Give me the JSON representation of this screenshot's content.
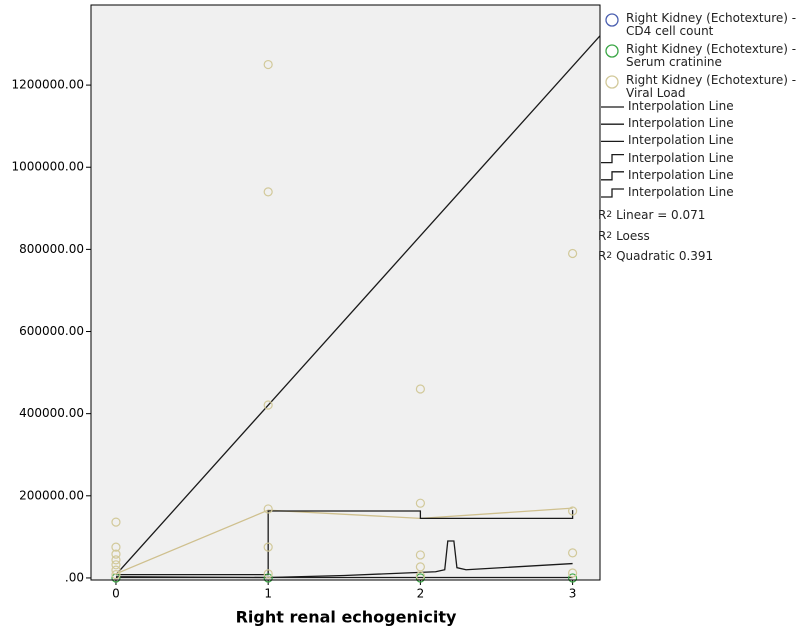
{
  "chart_data": {
    "type": "scatter",
    "x_label": "Right renal echogenicity",
    "xlim": [
      -0.164,
      3.18
    ],
    "xticks": [
      0,
      1,
      2,
      3
    ],
    "ylim": [
      -5000,
      1395000
    ],
    "yticks": [
      {
        "value": 0,
        "label": ".00"
      },
      {
        "value": 200000,
        "label": "200000.00"
      },
      {
        "value": 400000,
        "label": "400000.00"
      },
      {
        "value": 600000,
        "label": "600000.00"
      },
      {
        "value": 800000,
        "label": "800000.00"
      },
      {
        "value": 1000000,
        "label": "1000000.00"
      },
      {
        "value": 1200000,
        "label": "1200000.00"
      }
    ],
    "background": "#f0f0f0",
    "series": [
      {
        "name": "Right Kidney (Echotexture) - CD4 cell count",
        "color": "#4a5fb0",
        "x": [],
        "values": []
      },
      {
        "name": "Right Kidney (Echotexture) - Serum cratinine",
        "color": "#3aa645",
        "x": [
          0,
          1,
          2,
          3
        ],
        "values": [
          0,
          0,
          0,
          0
        ]
      },
      {
        "name": "Right Kidney (Echotexture) - Viral Load",
        "color": "#d2c99a",
        "x": [
          0,
          0,
          0,
          0,
          0,
          0,
          0,
          1,
          1,
          1,
          1,
          1,
          1,
          2,
          2,
          2,
          2,
          2,
          3,
          3,
          3,
          3
        ],
        "values": [
          136000,
          75000,
          58000,
          44000,
          32000,
          19000,
          8000,
          1250000,
          940000,
          421000,
          168000,
          75000,
          10000,
          460000,
          182000,
          56000,
          27000,
          5000,
          790000,
          163000,
          61000,
          12000
        ]
      }
    ],
    "lines": [
      {
        "color": "#1a1a1a",
        "x": [
          0,
          3.18
        ],
        "values": [
          8000,
          1320000
        ]
      },
      {
        "color": "#cfc08e",
        "x": [
          0,
          1,
          2,
          3
        ],
        "values": [
          10000,
          165000,
          145000,
          170000
        ]
      },
      {
        "color": "#1a1a1a",
        "x": [
          0,
          1,
          1,
          2,
          2,
          3,
          3
        ],
        "values": [
          8000,
          8000,
          163000,
          163000,
          145000,
          145000,
          165000
        ]
      },
      {
        "color": "#1a1a1a",
        "x": [
          0,
          1,
          1.5,
          2.1,
          2.16,
          2.18,
          2.22,
          2.24,
          2.3,
          3
        ],
        "values": [
          3000,
          1000,
          6000,
          15000,
          20000,
          90000,
          90000,
          25000,
          20000,
          35000
        ]
      },
      {
        "color": "#1a1a1a",
        "x": [
          0,
          3
        ],
        "values": [
          1000,
          1000
        ]
      }
    ],
    "line_legend": [
      "Interpolation Line",
      "Interpolation Line",
      "Interpolation Line",
      "Interpolation Line",
      "Interpolation Line",
      "Interpolation Line"
    ],
    "fit_legend": [
      {
        "r": "R",
        "sup": "2",
        "text": "Linear = 0.071"
      },
      {
        "r": "R",
        "sup": "2",
        "text": "Loess"
      },
      {
        "r": "R",
        "sup": "2",
        "text": "Quadratic 0.391"
      }
    ]
  }
}
